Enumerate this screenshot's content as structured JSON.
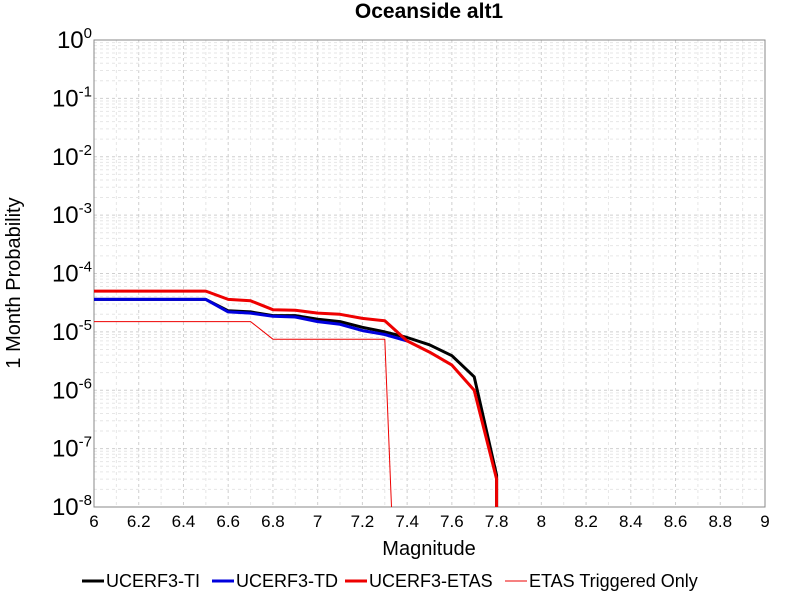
{
  "chart_data": {
    "type": "line",
    "title": "Oceanside alt1",
    "xlabel": "Magnitude",
    "ylabel": "1 Month Probability",
    "xlim": [
      6,
      9
    ],
    "ylim": [
      1e-08,
      1
    ],
    "yscale": "log",
    "grid": true,
    "legend_position": "bottom",
    "xticks": [
      "6",
      "6.2",
      "6.4",
      "6.6",
      "6.8",
      "7",
      "7.2",
      "7.4",
      "7.6",
      "7.8",
      "8",
      "8.2",
      "8.4",
      "8.6",
      "8.8",
      "9"
    ],
    "yticks": [
      {
        "base": "10",
        "exp": "0"
      },
      {
        "base": "10",
        "exp": "-1"
      },
      {
        "base": "10",
        "exp": "-2"
      },
      {
        "base": "10",
        "exp": "-3"
      },
      {
        "base": "10",
        "exp": "-4"
      },
      {
        "base": "10",
        "exp": "-5"
      },
      {
        "base": "10",
        "exp": "-6"
      },
      {
        "base": "10",
        "exp": "-7"
      },
      {
        "base": "10",
        "exp": "-8"
      }
    ],
    "series": [
      {
        "name": "UCERF3-TI",
        "color": "#000000",
        "width": 3,
        "x": [
          6.0,
          6.1,
          6.2,
          6.3,
          6.4,
          6.5,
          6.6,
          6.7,
          6.8,
          6.9,
          7.0,
          7.1,
          7.2,
          7.3,
          7.4,
          7.5,
          7.6,
          7.7,
          7.8,
          7.8
        ],
        "y": [
          3.6e-05,
          3.6e-05,
          3.6e-05,
          3.6e-05,
          3.6e-05,
          3.6e-05,
          2.3e-05,
          2.2e-05,
          1.9e-05,
          1.9e-05,
          1.65e-05,
          1.5e-05,
          1.2e-05,
          1e-05,
          8e-06,
          6e-06,
          3.9e-06,
          1.7e-06,
          3.5e-08,
          1e-08
        ]
      },
      {
        "name": "UCERF3-TD",
        "color": "#0000dd",
        "width": 3,
        "x": [
          6.0,
          6.1,
          6.2,
          6.3,
          6.4,
          6.5,
          6.6,
          6.7,
          6.8,
          6.9,
          7.0,
          7.1,
          7.2,
          7.3,
          7.4
        ],
        "y": [
          3.6e-05,
          3.6e-05,
          3.6e-05,
          3.6e-05,
          3.6e-05,
          3.6e-05,
          2.2e-05,
          2.1e-05,
          1.85e-05,
          1.8e-05,
          1.5e-05,
          1.35e-05,
          1.05e-05,
          9e-06,
          7e-06
        ]
      },
      {
        "name": "UCERF3-ETAS",
        "color": "#ee0000",
        "width": 3,
        "x": [
          6.0,
          6.1,
          6.2,
          6.3,
          6.4,
          6.5,
          6.6,
          6.7,
          6.8,
          6.9,
          7.0,
          7.1,
          7.2,
          7.3,
          7.4,
          7.5,
          7.6,
          7.7,
          7.8,
          7.8
        ],
        "y": [
          5e-05,
          5e-05,
          5e-05,
          5e-05,
          5e-05,
          5e-05,
          3.6e-05,
          3.4e-05,
          2.4e-05,
          2.35e-05,
          2.1e-05,
          2e-05,
          1.7e-05,
          1.55e-05,
          7e-06,
          4.5e-06,
          2.7e-06,
          1e-06,
          3e-08,
          1e-08
        ]
      },
      {
        "name": "ETAS Triggered Only",
        "color": "#ee0000",
        "width": 1,
        "x": [
          6.0,
          6.1,
          6.2,
          6.3,
          6.4,
          6.5,
          6.6,
          6.7,
          6.8,
          6.9,
          7.0,
          7.1,
          7.2,
          7.3,
          7.33
        ],
        "y": [
          1.5e-05,
          1.5e-05,
          1.5e-05,
          1.5e-05,
          1.5e-05,
          1.5e-05,
          1.5e-05,
          1.5e-05,
          7.5e-06,
          7.5e-06,
          7.5e-06,
          7.5e-06,
          7.5e-06,
          7.5e-06,
          1e-08
        ]
      }
    ]
  }
}
